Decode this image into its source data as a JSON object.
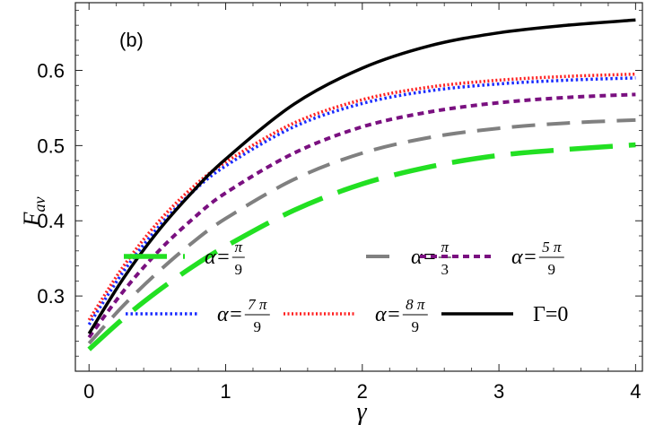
{
  "chart_data": {
    "type": "line",
    "panel_label": "(b)",
    "xlabel": "γ",
    "ylabel_main": "F",
    "ylabel_sub": "av",
    "xlim": [
      -0.1,
      4.05
    ],
    "ylim": [
      0.2,
      0.69
    ],
    "xticks": [
      0,
      1,
      2,
      3,
      4
    ],
    "xtick_labels": [
      "0",
      "1",
      "2",
      "3",
      "4"
    ],
    "yticks": [
      0.3,
      0.4,
      0.5,
      0.6
    ],
    "ytick_labels": [
      "0.3",
      "0.4",
      "0.5",
      "0.6"
    ],
    "x": [
      0,
      0.25,
      0.5,
      0.75,
      1,
      1.5,
      2,
      2.5,
      3,
      3.5,
      4
    ],
    "series": [
      {
        "name": "Γ=0",
        "legend_prefix": "Γ=0",
        "color": "#000000",
        "dash": "solid",
        "values": [
          0.25,
          0.323,
          0.385,
          0.437,
          0.482,
          0.555,
          0.603,
          0.633,
          0.65,
          0.66,
          0.667
        ]
      },
      {
        "name": "α=8π/9",
        "legend_prefix": "α=",
        "frac_num": "8 π",
        "frac_den": "9",
        "color": "#ff2020",
        "dash": "dotted-fine",
        "values": [
          0.268,
          0.339,
          0.397,
          0.443,
          0.478,
          0.53,
          0.561,
          0.578,
          0.587,
          0.592,
          0.595
        ]
      },
      {
        "name": "α=7π/9",
        "legend_prefix": "α=",
        "frac_num": "7 π",
        "frac_den": "9",
        "color": "#1a2bff",
        "dash": "dotted",
        "values": [
          0.262,
          0.332,
          0.39,
          0.437,
          0.473,
          0.525,
          0.556,
          0.573,
          0.582,
          0.587,
          0.59
        ]
      },
      {
        "name": "α=5π/9",
        "legend_prefix": "α=",
        "frac_num": "5 π",
        "frac_den": "9",
        "color": "#7a1080",
        "dash": "short",
        "values": [
          0.245,
          0.306,
          0.358,
          0.401,
          0.437,
          0.49,
          0.525,
          0.545,
          0.557,
          0.564,
          0.568
        ]
      },
      {
        "name": "α=π/3",
        "legend_prefix": "α=",
        "frac_num": "π",
        "frac_den": "3",
        "color": "#808080",
        "dash": "medium",
        "values": [
          0.237,
          0.287,
          0.331,
          0.37,
          0.403,
          0.455,
          0.49,
          0.511,
          0.523,
          0.53,
          0.534
        ]
      },
      {
        "name": "α=π/9",
        "legend_prefix": "α=",
        "frac_num": "π",
        "frac_den": "9",
        "color": "#22e022",
        "dash": "long",
        "values": [
          0.229,
          0.27,
          0.306,
          0.338,
          0.366,
          0.414,
          0.449,
          0.472,
          0.487,
          0.495,
          0.501
        ]
      }
    ],
    "legend_rows": [
      [
        "α=π/9",
        "α=π/3",
        "α=5π/9"
      ],
      [
        "α=7π/9",
        "α=8π/9",
        "Γ=0"
      ]
    ],
    "legend_placement": "bottom-right inside plot",
    "grid": false
  }
}
